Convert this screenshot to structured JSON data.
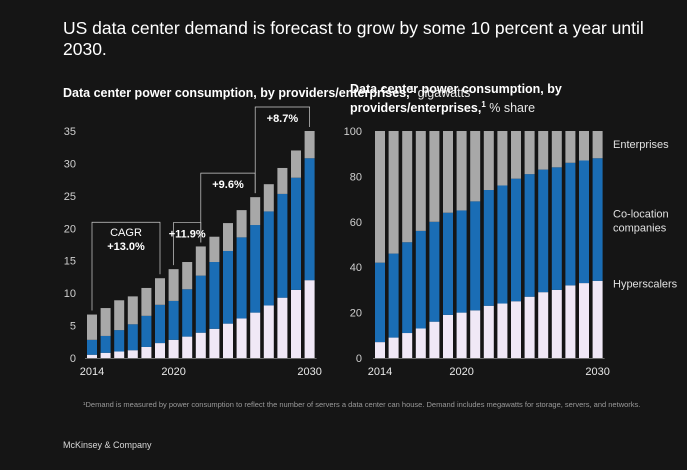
{
  "title": "US data center demand is forecast to grow by some 10 percent a year until 2030.",
  "footnote": "¹Demand is measured by power consumption to reflect the number of servers a data center can house. Demand includes megawatts for storage, servers, and networks.",
  "brand": "McKinsey & Company",
  "colors": {
    "hyperscalers": "#f0e8f6",
    "colocation": "#1a6db5",
    "enterprises": "#a8a8a8",
    "background": "#151515"
  },
  "chart_data": [
    {
      "type": "bar",
      "stacked": true,
      "title_bold": "Data center power consumption, by providers/enterprises,",
      "title_sup": "1",
      "title_unit": "gigawatts",
      "x": [
        2014,
        2015,
        2016,
        2017,
        2018,
        2019,
        2020,
        2021,
        2022,
        2023,
        2024,
        2025,
        2026,
        2027,
        2028,
        2029,
        2030
      ],
      "x_tick_labels": [
        "2014",
        "2020",
        "2030"
      ],
      "y_ticks": [
        "0",
        "5",
        "10",
        "15",
        "20",
        "25",
        "30",
        "35"
      ],
      "ylim": [
        0,
        35
      ],
      "series": [
        {
          "name": "Hyperscalers",
          "values": [
            0.5,
            0.8,
            1.0,
            1.2,
            1.7,
            2.3,
            2.8,
            3.3,
            3.9,
            4.5,
            5.3,
            6.1,
            7.0,
            8.1,
            9.3,
            10.5,
            12.0
          ]
        },
        {
          "name": "Co-location companies",
          "values": [
            2.3,
            2.6,
            3.3,
            4.0,
            4.8,
            5.9,
            6.0,
            7.3,
            8.8,
            10.3,
            11.2,
            12.5,
            13.5,
            14.5,
            16.0,
            17.3,
            18.8
          ]
        },
        {
          "name": "Enterprises",
          "values": [
            3.9,
            4.3,
            4.6,
            4.3,
            4.3,
            4.1,
            4.9,
            4.2,
            4.5,
            3.9,
            4.3,
            4.2,
            4.3,
            4.2,
            4.0,
            4.2,
            4.2
          ]
        }
      ],
      "annotations": [
        {
          "label": "CAGR",
          "value": "+13.0%"
        },
        {
          "value": "+11.9%"
        },
        {
          "value": "+9.6%"
        },
        {
          "value": "+8.7%"
        }
      ]
    },
    {
      "type": "bar",
      "stacked": true,
      "percent": true,
      "title_bold": "Data center power consumption, by providers/enterprises,",
      "title_sup": "1",
      "title_unit": "% share",
      "x": [
        2014,
        2015,
        2016,
        2017,
        2018,
        2019,
        2020,
        2021,
        2022,
        2023,
        2024,
        2025,
        2026,
        2027,
        2028,
        2029,
        2030
      ],
      "x_tick_labels": [
        "2014",
        "2020",
        "2030"
      ],
      "y_ticks": [
        "0",
        "20",
        "40",
        "60",
        "80",
        "100"
      ],
      "ylim": [
        0,
        100
      ],
      "series": [
        {
          "name": "Hyperscalers",
          "values": [
            7,
            9,
            11,
            13,
            16,
            19,
            20,
            21,
            23,
            24,
            25,
            27,
            29,
            30,
            32,
            33,
            34
          ]
        },
        {
          "name": "Co-location companies",
          "values": [
            35,
            37,
            40,
            43,
            44,
            45,
            45,
            48,
            51,
            52,
            54,
            54,
            54,
            54,
            54,
            54,
            54
          ]
        },
        {
          "name": "Enterprises",
          "values": [
            58,
            54,
            49,
            44,
            40,
            36,
            35,
            31,
            26,
            24,
            21,
            19,
            17,
            16,
            14,
            13,
            12
          ]
        }
      ],
      "legend": [
        "Enterprises",
        "Co-location companies",
        "Hyperscalers"
      ]
    }
  ]
}
